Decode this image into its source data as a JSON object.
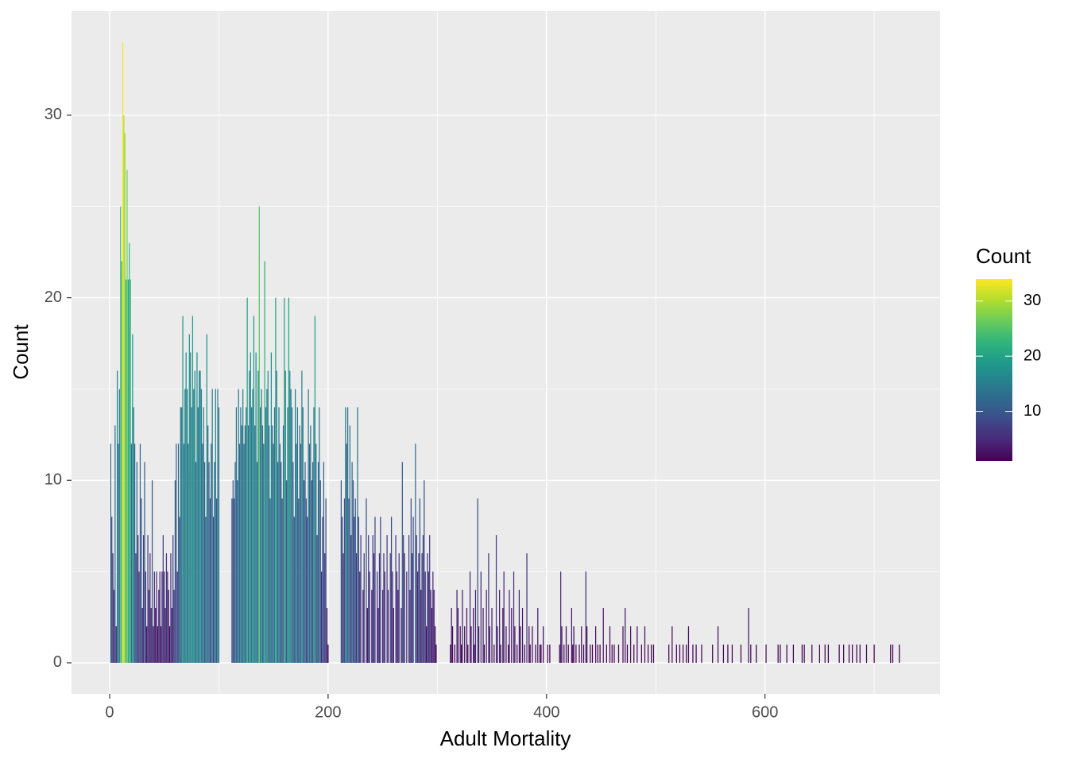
{
  "chart_data": {
    "type": "bar",
    "x_label": "Adult Mortality",
    "y_label": "Count",
    "xlim": [
      -34.9,
      760.3
    ],
    "ylim": [
      -1.7,
      35.7
    ],
    "xticks": [
      0,
      200,
      400,
      600
    ],
    "yticks": [
      0,
      10,
      20,
      30
    ],
    "xminorticks": [
      100,
      300,
      500,
      700
    ],
    "yminorticks": [
      5,
      15,
      25
    ],
    "grid": true,
    "legend": {
      "title": "Count",
      "position": "right",
      "limits": [
        1,
        34
      ],
      "ticks": [
        10,
        20,
        30
      ],
      "colors": [
        "#440154",
        "#482878",
        "#3e4989",
        "#31688e",
        "#26828e",
        "#1f9e89",
        "#35b779",
        "#6ece58",
        "#b5de2b",
        "#fde725"
      ]
    },
    "x": [
      1,
      2,
      3,
      4,
      5,
      6,
      7,
      8,
      9,
      10,
      11,
      12,
      13,
      14,
      15,
      16,
      17,
      18,
      19,
      20,
      21,
      22,
      23,
      24,
      25,
      26,
      27,
      28,
      29,
      30,
      31,
      32,
      33,
      34,
      35,
      36,
      37,
      38,
      39,
      40,
      41,
      42,
      43,
      44,
      45,
      46,
      47,
      48,
      49,
      50,
      51,
      52,
      53,
      54,
      55,
      56,
      57,
      58,
      59,
      60,
      61,
      62,
      63,
      64,
      65,
      66,
      67,
      68,
      69,
      70,
      71,
      72,
      73,
      74,
      75,
      76,
      77,
      78,
      79,
      80,
      81,
      82,
      83,
      84,
      85,
      86,
      87,
      88,
      89,
      90,
      91,
      92,
      93,
      94,
      95,
      96,
      97,
      98,
      99,
      100,
      112,
      113,
      114,
      115,
      116,
      117,
      118,
      119,
      120,
      121,
      122,
      123,
      124,
      125,
      126,
      127,
      128,
      129,
      130,
      131,
      132,
      133,
      134,
      135,
      136,
      137,
      138,
      139,
      140,
      141,
      142,
      143,
      144,
      145,
      146,
      147,
      148,
      149,
      150,
      151,
      152,
      153,
      154,
      155,
      156,
      157,
      158,
      159,
      160,
      161,
      162,
      163,
      164,
      165,
      166,
      167,
      168,
      169,
      170,
      171,
      172,
      173,
      174,
      175,
      176,
      177,
      178,
      179,
      180,
      181,
      182,
      183,
      184,
      185,
      186,
      187,
      188,
      189,
      190,
      191,
      192,
      193,
      194,
      195,
      196,
      197,
      198,
      199,
      200,
      212,
      213,
      214,
      215,
      216,
      217,
      218,
      219,
      220,
      221,
      222,
      223,
      224,
      225,
      226,
      227,
      228,
      229,
      230,
      232,
      233,
      235,
      236,
      237,
      238,
      240,
      241,
      242,
      243,
      245,
      246,
      247,
      248,
      250,
      251,
      252,
      254,
      255,
      257,
      258,
      259,
      260,
      262,
      263,
      264,
      265,
      267,
      268,
      269,
      270,
      272,
      274,
      275,
      276,
      277,
      278,
      280,
      281,
      282,
      283,
      284,
      285,
      286,
      287,
      288,
      289,
      290,
      291,
      292,
      293,
      294,
      295,
      296,
      297,
      298,
      299,
      312,
      313,
      314,
      316,
      318,
      319,
      321,
      322,
      323,
      325,
      327,
      328,
      330,
      331,
      333,
      334,
      335,
      337,
      338,
      340,
      342,
      343,
      345,
      347,
      348,
      350,
      352,
      354,
      355,
      357,
      358,
      360,
      361,
      363,
      365,
      366,
      368,
      370,
      371,
      373,
      375,
      376,
      378,
      380,
      382,
      384,
      385,
      387,
      390,
      392,
      394,
      395,
      397,
      401,
      403,
      412,
      413,
      414,
      416,
      418,
      420,
      423,
      424,
      425,
      427,
      430,
      432,
      434,
      436,
      437,
      440,
      442,
      445,
      447,
      449,
      452,
      455,
      458,
      460,
      462,
      466,
      470,
      472,
      474,
      477,
      480,
      483,
      487,
      490,
      493,
      496,
      498,
      512,
      515,
      519,
      522,
      525,
      528,
      530,
      534,
      537,
      542,
      552,
      557,
      562,
      566,
      570,
      578,
      585,
      587,
      592,
      601,
      612,
      614,
      620,
      626,
      634,
      636,
      643,
      650,
      655,
      658,
      668,
      672,
      677,
      680,
      684,
      687,
      693,
      700,
      715,
      717,
      723
    ],
    "values": [
      12,
      8,
      6,
      4,
      13,
      2,
      16,
      12,
      15,
      25,
      22,
      34,
      30,
      29,
      21,
      27,
      21,
      23,
      21,
      12,
      18,
      14,
      12,
      6,
      11,
      7,
      5,
      12,
      9,
      3,
      7,
      11,
      5,
      2,
      7,
      4,
      6,
      3,
      10,
      2,
      5,
      3,
      5,
      2,
      4,
      5,
      2,
      5,
      7,
      5,
      3,
      6,
      5,
      4,
      2,
      6,
      3,
      7,
      4,
      10,
      12,
      5,
      12,
      8,
      14,
      14,
      19,
      12,
      15,
      17,
      15,
      12,
      18,
      17,
      14,
      19,
      15,
      16,
      11,
      17,
      14,
      16,
      16,
      15,
      12,
      14,
      11,
      8,
      18,
      13,
      11,
      9,
      12,
      15,
      8,
      11,
      15,
      9,
      15,
      14,
      9,
      10,
      9,
      11,
      14,
      10,
      15,
      12,
      14,
      13,
      15,
      12,
      13,
      14,
      20,
      13,
      16,
      17,
      14,
      15,
      19,
      13,
      17,
      11,
      16,
      25,
      14,
      15,
      13,
      12,
      22,
      14,
      15,
      16,
      13,
      9,
      17,
      13,
      12,
      14,
      20,
      16,
      11,
      14,
      12,
      11,
      9,
      13,
      20,
      16,
      10,
      14,
      20,
      16,
      15,
      14,
      11,
      8,
      15,
      12,
      14,
      9,
      13,
      12,
      16,
      14,
      10,
      11,
      9,
      8,
      15,
      12,
      13,
      10,
      11,
      14,
      19,
      12,
      7,
      11,
      14,
      10,
      5,
      8,
      11,
      6,
      9,
      3,
      1,
      10,
      8,
      6,
      9,
      14,
      12,
      14,
      9,
      13,
      7,
      11,
      10,
      8,
      9,
      6,
      14,
      8,
      5,
      7,
      4,
      6,
      9,
      3,
      7,
      5,
      4,
      7,
      6,
      8,
      5,
      3,
      6,
      8,
      4,
      6,
      5,
      7,
      4,
      6,
      8,
      5,
      3,
      7,
      5,
      4,
      6,
      3,
      11,
      7,
      6,
      5,
      7,
      4,
      9,
      6,
      8,
      12,
      7,
      5,
      6,
      9,
      4,
      6,
      7,
      10,
      5,
      2,
      6,
      5,
      7,
      4,
      3,
      5,
      4,
      2,
      1,
      1,
      3,
      2,
      1,
      4,
      3,
      2,
      1,
      4,
      2,
      3,
      1,
      5,
      2,
      3,
      1,
      4,
      9,
      2,
      5,
      3,
      1,
      4,
      6,
      2,
      3,
      1,
      7,
      2,
      4,
      1,
      3,
      5,
      2,
      1,
      4,
      3,
      5,
      2,
      1,
      4,
      2,
      3,
      1,
      6,
      2,
      1,
      2,
      1,
      3,
      1,
      1,
      2,
      1,
      1,
      1,
      5,
      2,
      1,
      2,
      1,
      3,
      1,
      2,
      1,
      1,
      2,
      1,
      5,
      2,
      1,
      1,
      2,
      1,
      1,
      3,
      1,
      2,
      1,
      1,
      1,
      2,
      3,
      1,
      2,
      1,
      2,
      1,
      2,
      1,
      1,
      1,
      1,
      2,
      1,
      1,
      1,
      1,
      2,
      1,
      1,
      1,
      1,
      2,
      1,
      1,
      1,
      1,
      3,
      1,
      1,
      1,
      1,
      1,
      1,
      1,
      1,
      1,
      1,
      1,
      1,
      1,
      1,
      1,
      1,
      1,
      1,
      1,
      1,
      1,
      1,
      1,
      1
    ]
  }
}
